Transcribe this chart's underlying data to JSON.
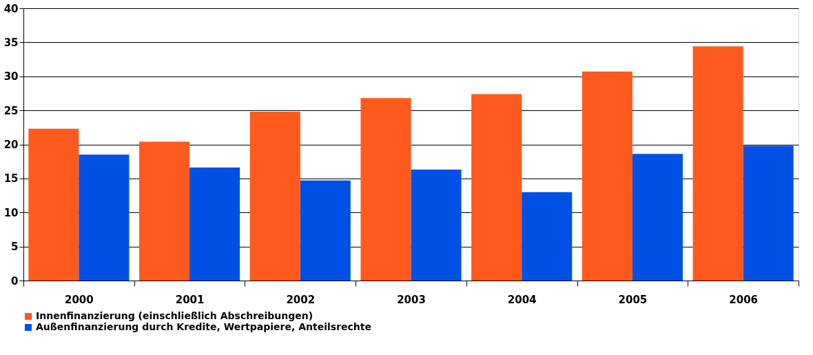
{
  "chart_data": {
    "type": "bar",
    "categories": [
      "2000",
      "2001",
      "2002",
      "2003",
      "2004",
      "2005",
      "2006"
    ],
    "series": [
      {
        "name": "Innenfinanzierung (einschließlich Abschreibungen)",
        "color": "#ff5a1e",
        "values": [
          22.3,
          20.4,
          24.8,
          26.8,
          27.4,
          30.7,
          34.4
        ]
      },
      {
        "name": "Außenfinanzierung durch Kredite, Wertpapiere, Anteilsrechte",
        "color": "#0050e6",
        "values": [
          18.5,
          16.6,
          14.7,
          16.3,
          13.0,
          18.6,
          19.8
        ]
      }
    ],
    "ylim": [
      0,
      40
    ],
    "yticks": [
      0,
      5,
      10,
      15,
      20,
      25,
      30,
      35,
      40
    ],
    "grid": "y",
    "legend": "bottom"
  }
}
